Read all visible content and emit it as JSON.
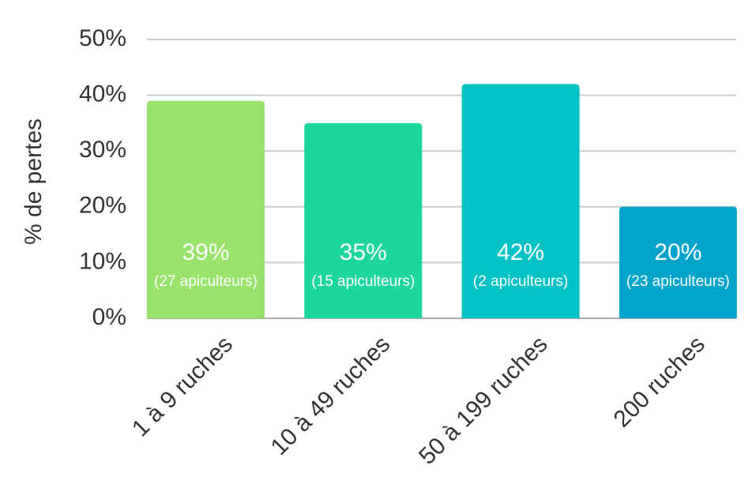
{
  "chart_data": {
    "type": "bar",
    "y_label": "% de pertes",
    "categories": [
      "1 à 9 ruches",
      "10 à 49 ruches",
      "50 à 199 ruches",
      "200 ruches"
    ],
    "values": [
      39,
      35,
      42,
      20
    ],
    "value_labels": [
      "39%",
      "35%",
      "42%",
      "20%"
    ],
    "bar_notes": [
      "(27 apiculteurs)",
      "(15 apiculteurs)",
      "(2 apiculteurs)",
      "(23 apiculteurs)"
    ],
    "colors": [
      "#99e26b",
      "#1cd69e",
      "#00c1c3",
      "#00a4ca"
    ],
    "ylim": [
      0,
      50
    ],
    "yticks": [
      {
        "value": 0,
        "label": "0%"
      },
      {
        "value": 10,
        "label": "10%"
      },
      {
        "value": 20,
        "label": "20%"
      },
      {
        "value": 30,
        "label": "30%"
      },
      {
        "value": 40,
        "label": "40%"
      },
      {
        "value": 50,
        "label": "50%"
      }
    ],
    "grid": true
  }
}
